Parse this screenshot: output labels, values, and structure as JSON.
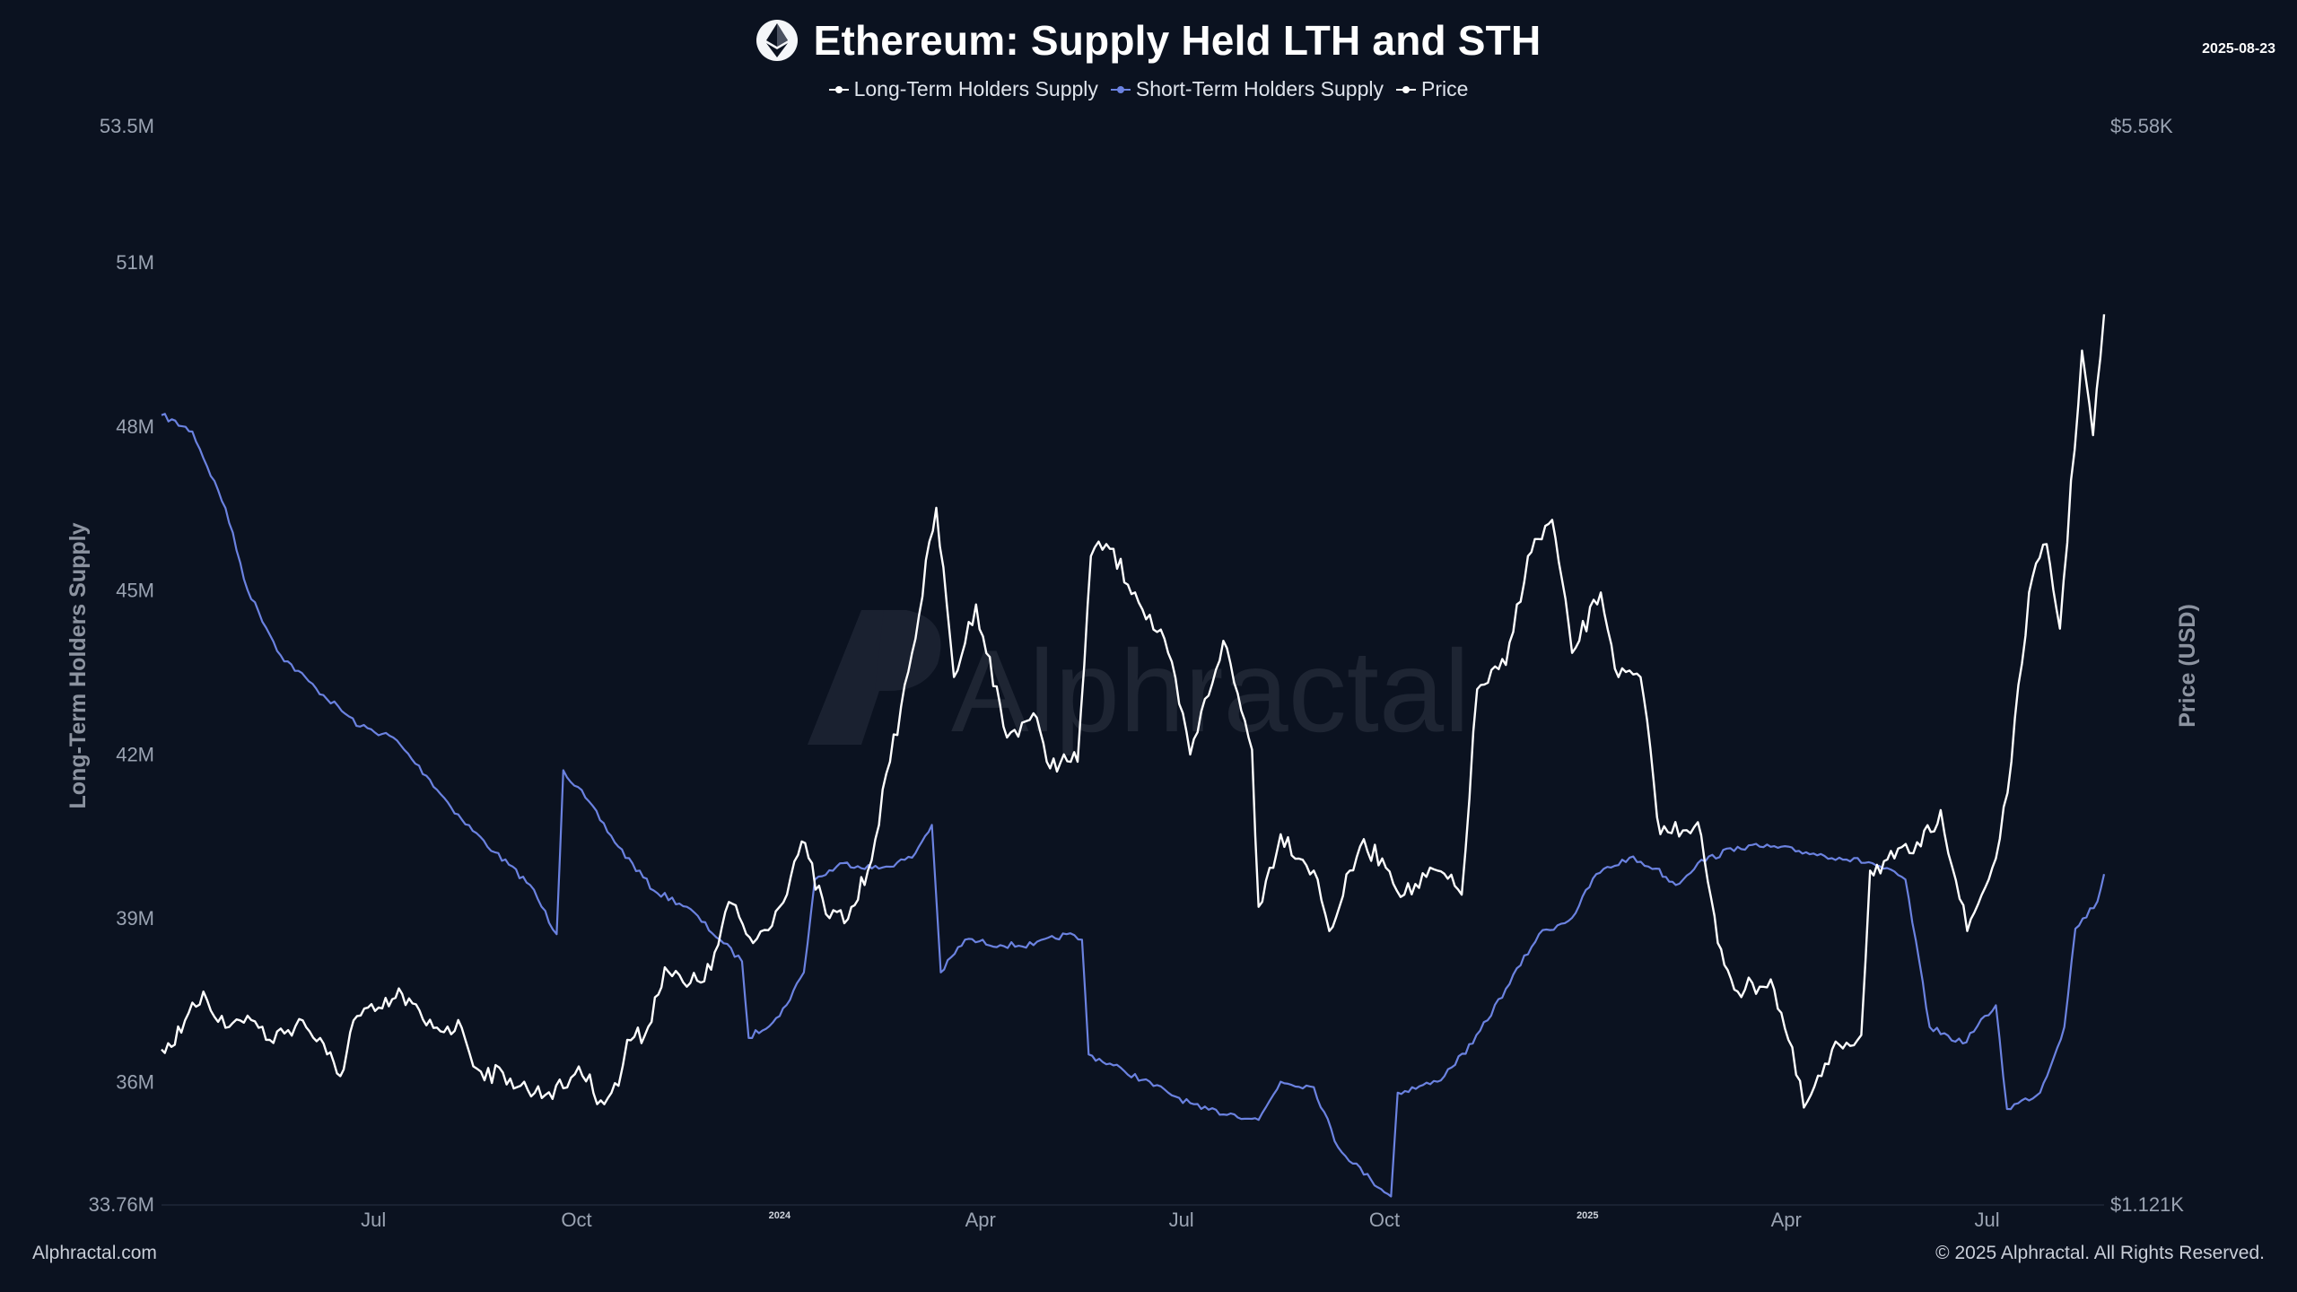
{
  "header": {
    "title": "Ethereum: Supply Held LTH and STH",
    "date": "2025-08-23"
  },
  "footer": {
    "left": "Alphractal.com",
    "right": "© 2025 Alphractal. All Rights Reserved."
  },
  "watermark": "Alphractal",
  "colors": {
    "background": "#0b1220",
    "lth": "#ffffff",
    "sth": "#6b82e0",
    "price": "#ffffff"
  },
  "chart_data": {
    "type": "line",
    "title": "Ethereum: Supply Held LTH and STH",
    "ylabel": "Long-Term Holders Supply",
    "y2label": "Price (USD)",
    "ylim": [
      33760000,
      53500000
    ],
    "y2lim": [
      1121,
      5580
    ],
    "y_ticks": [
      "53.5M",
      "51M",
      "48M",
      "45M",
      "42M",
      "39M",
      "36M",
      "33.76M"
    ],
    "y2_ticks": [
      "$5.58K",
      "$1.121K"
    ],
    "x_ticks": [
      {
        "label": "Jul",
        "date": "2023-07-01"
      },
      {
        "label": "Oct",
        "date": "2023-10-01"
      },
      {
        "label": "2024",
        "date": "2024-01-01",
        "year": true
      },
      {
        "label": "Apr",
        "date": "2024-04-01"
      },
      {
        "label": "Jul",
        "date": "2024-07-01"
      },
      {
        "label": "Oct",
        "date": "2024-10-01"
      },
      {
        "label": "2025",
        "date": "2025-01-01",
        "year": true
      },
      {
        "label": "Apr",
        "date": "2025-04-01"
      },
      {
        "label": "Jul",
        "date": "2025-07-01"
      }
    ],
    "x_range": [
      "2023-03-27",
      "2025-08-23"
    ],
    "legend_position": "top-center",
    "series": [
      {
        "name": "Long-Term Holders Supply",
        "axis": "left",
        "color": "#ffffff",
        "points": []
      },
      {
        "name": "Short-Term Holders Supply",
        "axis": "left",
        "color": "#6b82e0",
        "points": [
          [
            "2023-03-27",
            48200000
          ],
          [
            "2023-04-10",
            47900000
          ],
          [
            "2023-04-25",
            46500000
          ],
          [
            "2023-05-05",
            45000000
          ],
          [
            "2023-05-20",
            43800000
          ],
          [
            "2023-06-05",
            43200000
          ],
          [
            "2023-06-25",
            42500000
          ],
          [
            "2023-07-10",
            42300000
          ],
          [
            "2023-07-25",
            41600000
          ],
          [
            "2023-08-10",
            40800000
          ],
          [
            "2023-08-25",
            40200000
          ],
          [
            "2023-09-10",
            39600000
          ],
          [
            "2023-09-22",
            38700000
          ],
          [
            "2023-09-25",
            41700000
          ],
          [
            "2023-10-05",
            41200000
          ],
          [
            "2023-10-20",
            40300000
          ],
          [
            "2023-11-05",
            39500000
          ],
          [
            "2023-11-20",
            39200000
          ],
          [
            "2023-12-05",
            38600000
          ],
          [
            "2023-12-15",
            38200000
          ],
          [
            "2023-12-18",
            36800000
          ],
          [
            "2024-01-01",
            37200000
          ],
          [
            "2024-01-12",
            38000000
          ],
          [
            "2024-01-17",
            39700000
          ],
          [
            "2024-01-30",
            40000000
          ],
          [
            "2024-02-15",
            39900000
          ],
          [
            "2024-03-01",
            40100000
          ],
          [
            "2024-03-10",
            40700000
          ],
          [
            "2024-03-14",
            38000000
          ],
          [
            "2024-03-25",
            38600000
          ],
          [
            "2024-04-10",
            38500000
          ],
          [
            "2024-04-25",
            38500000
          ],
          [
            "2024-05-10",
            38700000
          ],
          [
            "2024-05-17",
            38600000
          ],
          [
            "2024-05-20",
            36500000
          ],
          [
            "2024-06-05",
            36200000
          ],
          [
            "2024-06-25",
            35800000
          ],
          [
            "2024-07-10",
            35500000
          ],
          [
            "2024-07-25",
            35400000
          ],
          [
            "2024-08-05",
            35300000
          ],
          [
            "2024-08-15",
            36000000
          ],
          [
            "2024-08-30",
            35900000
          ],
          [
            "2024-09-10",
            34800000
          ],
          [
            "2024-09-25",
            34200000
          ],
          [
            "2024-10-04",
            33900000
          ],
          [
            "2024-10-07",
            35800000
          ],
          [
            "2024-10-25",
            36000000
          ],
          [
            "2024-11-10",
            36700000
          ],
          [
            "2024-11-25",
            37700000
          ],
          [
            "2024-12-10",
            38700000
          ],
          [
            "2024-12-25",
            39000000
          ],
          [
            "2025-01-05",
            39800000
          ],
          [
            "2025-01-20",
            40100000
          ],
          [
            "2025-02-01",
            39900000
          ],
          [
            "2025-02-10",
            39600000
          ],
          [
            "2025-02-20",
            40000000
          ],
          [
            "2025-03-10",
            40300000
          ],
          [
            "2025-03-25",
            40300000
          ],
          [
            "2025-04-10",
            40200000
          ],
          [
            "2025-04-25",
            40100000
          ],
          [
            "2025-05-10",
            40000000
          ],
          [
            "2025-05-25",
            39700000
          ],
          [
            "2025-06-05",
            37000000
          ],
          [
            "2025-06-20",
            36700000
          ],
          [
            "2025-07-05",
            37400000
          ],
          [
            "2025-07-10",
            35500000
          ],
          [
            "2025-07-25",
            35800000
          ],
          [
            "2025-08-05",
            37000000
          ],
          [
            "2025-08-10",
            38800000
          ],
          [
            "2025-08-20",
            39300000
          ],
          [
            "2025-08-23",
            39800000
          ]
        ]
      },
      {
        "name": "Price",
        "axis": "right",
        "color": "#ffffff",
        "points": [
          [
            "2023-03-27",
            1760
          ],
          [
            "2023-04-05",
            1830
          ],
          [
            "2023-04-15",
            2000
          ],
          [
            "2023-04-25",
            1850
          ],
          [
            "2023-05-05",
            1900
          ],
          [
            "2023-05-15",
            1800
          ],
          [
            "2023-05-30",
            1880
          ],
          [
            "2023-06-10",
            1740
          ],
          [
            "2023-06-16",
            1650
          ],
          [
            "2023-06-22",
            1880
          ],
          [
            "2023-07-05",
            1930
          ],
          [
            "2023-07-14",
            1990
          ],
          [
            "2023-07-25",
            1860
          ],
          [
            "2023-08-10",
            1850
          ],
          [
            "2023-08-17",
            1680
          ],
          [
            "2023-09-01",
            1640
          ],
          [
            "2023-09-12",
            1580
          ],
          [
            "2023-09-25",
            1600
          ],
          [
            "2023-10-02",
            1690
          ],
          [
            "2023-10-12",
            1550
          ],
          [
            "2023-10-20",
            1610
          ],
          [
            "2023-10-24",
            1800
          ],
          [
            "2023-11-01",
            1820
          ],
          [
            "2023-11-10",
            2100
          ],
          [
            "2023-11-20",
            2020
          ],
          [
            "2023-12-01",
            2090
          ],
          [
            "2023-12-09",
            2370
          ],
          [
            "2023-12-20",
            2200
          ],
          [
            "2024-01-01",
            2350
          ],
          [
            "2024-01-11",
            2620
          ],
          [
            "2024-01-22",
            2320
          ],
          [
            "2024-02-01",
            2300
          ],
          [
            "2024-02-10",
            2500
          ],
          [
            "2024-02-20",
            2950
          ],
          [
            "2024-03-01",
            3400
          ],
          [
            "2024-03-12",
            4000
          ],
          [
            "2024-03-20",
            3300
          ],
          [
            "2024-03-30",
            3600
          ],
          [
            "2024-04-13",
            3050
          ],
          [
            "2024-04-25",
            3150
          ],
          [
            "2024-05-01",
            2950
          ],
          [
            "2024-05-15",
            2950
          ],
          [
            "2024-05-21",
            3800
          ],
          [
            "2024-05-28",
            3850
          ],
          [
            "2024-06-10",
            3650
          ],
          [
            "2024-06-25",
            3400
          ],
          [
            "2024-07-05",
            2980
          ],
          [
            "2024-07-20",
            3450
          ],
          [
            "2024-08-02",
            3000
          ],
          [
            "2024-08-05",
            2350
          ],
          [
            "2024-08-15",
            2650
          ],
          [
            "2024-08-30",
            2500
          ],
          [
            "2024-09-06",
            2250
          ],
          [
            "2024-09-20",
            2600
          ],
          [
            "2024-09-30",
            2550
          ],
          [
            "2024-10-10",
            2400
          ],
          [
            "2024-10-25",
            2500
          ],
          [
            "2024-11-05",
            2400
          ],
          [
            "2024-11-12",
            3250
          ],
          [
            "2024-11-25",
            3350
          ],
          [
            "2024-12-05",
            3800
          ],
          [
            "2024-12-16",
            3950
          ],
          [
            "2024-12-25",
            3400
          ],
          [
            "2025-01-07",
            3650
          ],
          [
            "2025-01-15",
            3300
          ],
          [
            "2025-01-25",
            3300
          ],
          [
            "2025-02-03",
            2650
          ],
          [
            "2025-02-20",
            2700
          ],
          [
            "2025-03-01",
            2200
          ],
          [
            "2025-03-10",
            2000
          ],
          [
            "2025-03-25",
            2050
          ],
          [
            "2025-04-02",
            1800
          ],
          [
            "2025-04-09",
            1520
          ],
          [
            "2025-04-25",
            1780
          ],
          [
            "2025-05-05",
            1820
          ],
          [
            "2025-05-09",
            2500
          ],
          [
            "2025-05-20",
            2550
          ],
          [
            "2025-06-01",
            2600
          ],
          [
            "2025-06-10",
            2750
          ],
          [
            "2025-06-22",
            2250
          ],
          [
            "2025-07-05",
            2550
          ],
          [
            "2025-07-12",
            2950
          ],
          [
            "2025-07-20",
            3650
          ],
          [
            "2025-07-28",
            3850
          ],
          [
            "2025-08-03",
            3500
          ],
          [
            "2025-08-13",
            4650
          ],
          [
            "2025-08-18",
            4300
          ],
          [
            "2025-08-23",
            4800
          ]
        ]
      }
    ]
  }
}
